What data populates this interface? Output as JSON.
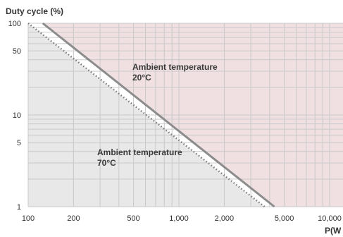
{
  "chart_data": {
    "type": "line",
    "ylabel": "Duty cycle (%)",
    "xlabel": "P(W",
    "x_scale": "log",
    "y_scale": "log",
    "xlim": [
      100,
      10000
    ],
    "ylim": [
      1,
      100
    ],
    "x_ticks": [
      {
        "value": 100,
        "label": "100"
      },
      {
        "value": 200,
        "label": "200"
      },
      {
        "value": 500,
        "label": "500"
      },
      {
        "value": 1000,
        "label": "1,000"
      },
      {
        "value": 2000,
        "label": "2,000"
      },
      {
        "value": 5000,
        "label": "5,000"
      },
      {
        "value": 10000,
        "label": "10,000"
      }
    ],
    "y_ticks": [
      {
        "value": 1,
        "label": "1"
      },
      {
        "value": 5,
        "label": "5"
      },
      {
        "value": 10,
        "label": "10"
      },
      {
        "value": 50,
        "label": "50"
      },
      {
        "value": 100,
        "label": "100"
      }
    ],
    "grid": true,
    "series": [
      {
        "name": "Ambient temperature 20°C",
        "style": "solid",
        "color": "#8c8c8c",
        "x": [
          125,
          4300
        ],
        "y": [
          100,
          1
        ]
      },
      {
        "name": "Ambient temperature 70°C",
        "style": "dotted",
        "color": "#7a7a7a",
        "x": [
          100,
          3700
        ],
        "y": [
          100,
          1
        ]
      }
    ],
    "regions": {
      "above_20C_fill": "#f0e0e2",
      "below_70C_fill": "#e8e8e8",
      "between_fill": "#ffffff"
    },
    "annotations": [
      {
        "line1": "Ambient temperature",
        "line2": "20°C",
        "x": 500,
        "y": 60
      },
      {
        "line1": "Ambient temperature",
        "line2": "70°C",
        "x": 260,
        "y": 4.5
      }
    ]
  }
}
